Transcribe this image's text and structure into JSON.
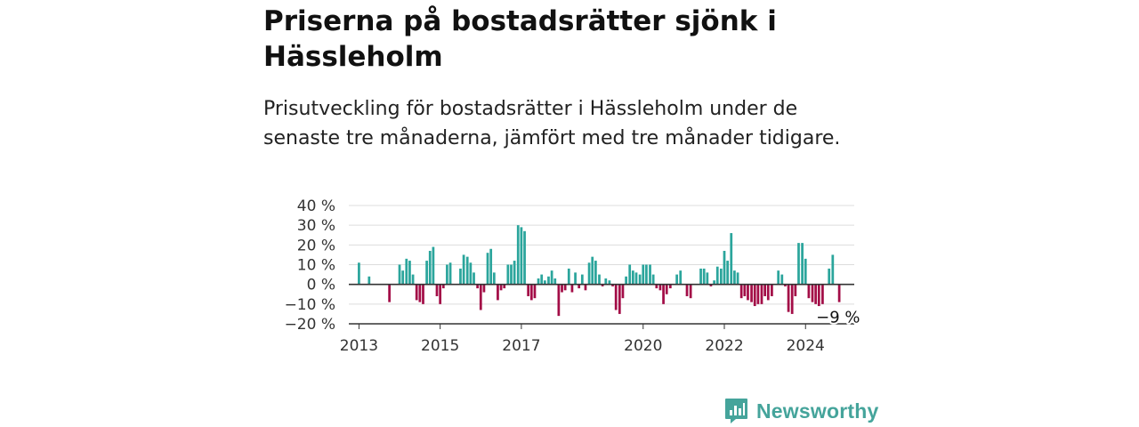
{
  "header": {
    "title": "Priserna på bostadsrätter sjönk i Hässleholm",
    "subtitle": "Prisutveckling för bostadsrätter i Hässleholm under de senaste tre månaderna, jämfört med tre månader tidigare."
  },
  "brand": {
    "name": "Newsworthy",
    "color": "#45a49b"
  },
  "colors": {
    "positive": "#2ba59c",
    "negative": "#a30d47",
    "grid": "#dddddd",
    "axis": "#333333"
  },
  "chart_data": {
    "type": "bar",
    "ylim": [
      -20,
      40
    ],
    "yticks": [
      40,
      30,
      20,
      10,
      0,
      -10,
      -20
    ],
    "ytick_labels": [
      "40 %",
      "30 %",
      "20 %",
      "10 %",
      "0 %",
      "−10 %",
      "−20 %"
    ],
    "xlim": [
      2012.75,
      2025.2
    ],
    "xticks": [
      2013,
      2015,
      2017,
      2020,
      2022,
      2024
    ],
    "xtick_labels": [
      "2013",
      "2015",
      "2017",
      "2020",
      "2022",
      "2024"
    ],
    "grid": true,
    "legend": "none",
    "annotation": {
      "text": "−9 %",
      "x": 2024.83,
      "y": -9
    },
    "series": [
      {
        "points": [
          [
            2013.0,
            11
          ],
          [
            2013.25,
            4
          ],
          [
            2013.75,
            -9
          ],
          [
            2014.0,
            10
          ],
          [
            2014.08,
            7
          ],
          [
            2014.17,
            13
          ],
          [
            2014.25,
            12
          ],
          [
            2014.33,
            5
          ],
          [
            2014.42,
            -8
          ],
          [
            2014.5,
            -9
          ],
          [
            2014.58,
            -10
          ],
          [
            2014.67,
            12
          ],
          [
            2014.75,
            17
          ],
          [
            2014.83,
            19
          ],
          [
            2014.92,
            -6
          ],
          [
            2015.0,
            -10
          ],
          [
            2015.08,
            -2
          ],
          [
            2015.17,
            10
          ],
          [
            2015.25,
            11
          ],
          [
            2015.5,
            8
          ],
          [
            2015.58,
            15
          ],
          [
            2015.67,
            14
          ],
          [
            2015.75,
            11
          ],
          [
            2015.83,
            6
          ],
          [
            2015.92,
            -2
          ],
          [
            2016.0,
            -13
          ],
          [
            2016.08,
            -4
          ],
          [
            2016.17,
            16
          ],
          [
            2016.25,
            18
          ],
          [
            2016.33,
            6
          ],
          [
            2016.42,
            -8
          ],
          [
            2016.5,
            -3
          ],
          [
            2016.58,
            -2
          ],
          [
            2016.67,
            10
          ],
          [
            2016.75,
            10
          ],
          [
            2016.83,
            12
          ],
          [
            2016.92,
            30
          ],
          [
            2017.0,
            29
          ],
          [
            2017.08,
            27
          ],
          [
            2017.17,
            -6
          ],
          [
            2017.25,
            -8
          ],
          [
            2017.33,
            -7
          ],
          [
            2017.42,
            3
          ],
          [
            2017.5,
            5
          ],
          [
            2017.58,
            2
          ],
          [
            2017.67,
            4
          ],
          [
            2017.75,
            7
          ],
          [
            2017.83,
            3
          ],
          [
            2017.92,
            -16
          ],
          [
            2018.0,
            -4
          ],
          [
            2018.08,
            -3
          ],
          [
            2018.17,
            8
          ],
          [
            2018.25,
            -4
          ],
          [
            2018.33,
            6
          ],
          [
            2018.42,
            -2
          ],
          [
            2018.5,
            5
          ],
          [
            2018.58,
            -3
          ],
          [
            2018.67,
            11
          ],
          [
            2018.75,
            14
          ],
          [
            2018.83,
            12
          ],
          [
            2018.92,
            5
          ],
          [
            2019.0,
            -1
          ],
          [
            2019.08,
            3
          ],
          [
            2019.17,
            2
          ],
          [
            2019.25,
            -1
          ],
          [
            2019.33,
            -13
          ],
          [
            2019.42,
            -15
          ],
          [
            2019.5,
            -7
          ],
          [
            2019.58,
            4
          ],
          [
            2019.67,
            10
          ],
          [
            2019.75,
            7
          ],
          [
            2019.83,
            6
          ],
          [
            2019.92,
            5
          ],
          [
            2020.0,
            10
          ],
          [
            2020.08,
            10
          ],
          [
            2020.17,
            10
          ],
          [
            2020.25,
            5
          ],
          [
            2020.33,
            -2
          ],
          [
            2020.42,
            -3
          ],
          [
            2020.5,
            -10
          ],
          [
            2020.58,
            -5
          ],
          [
            2020.67,
            -2
          ],
          [
            2020.83,
            5
          ],
          [
            2020.92,
            7
          ],
          [
            2021.08,
            -6
          ],
          [
            2021.17,
            -7
          ],
          [
            2021.42,
            8
          ],
          [
            2021.5,
            8
          ],
          [
            2021.58,
            6
          ],
          [
            2021.67,
            -1
          ],
          [
            2021.75,
            2
          ],
          [
            2021.83,
            9
          ],
          [
            2021.92,
            8
          ],
          [
            2022.0,
            17
          ],
          [
            2022.08,
            12
          ],
          [
            2022.17,
            26
          ],
          [
            2022.25,
            7
          ],
          [
            2022.33,
            6
          ],
          [
            2022.42,
            -7
          ],
          [
            2022.5,
            -6
          ],
          [
            2022.58,
            -8
          ],
          [
            2022.67,
            -9
          ],
          [
            2022.75,
            -11
          ],
          [
            2022.83,
            -10
          ],
          [
            2022.92,
            -10
          ],
          [
            2023.0,
            -6
          ],
          [
            2023.08,
            -8
          ],
          [
            2023.17,
            -6
          ],
          [
            2023.33,
            7
          ],
          [
            2023.42,
            5
          ],
          [
            2023.5,
            -1
          ],
          [
            2023.58,
            -14
          ],
          [
            2023.67,
            -15
          ],
          [
            2023.75,
            -6
          ],
          [
            2023.83,
            21
          ],
          [
            2023.92,
            21
          ],
          [
            2024.0,
            13
          ],
          [
            2024.08,
            -7
          ],
          [
            2024.17,
            -9
          ],
          [
            2024.25,
            -10
          ],
          [
            2024.33,
            -11
          ],
          [
            2024.42,
            -10
          ],
          [
            2024.58,
            8
          ],
          [
            2024.67,
            15
          ],
          [
            2024.83,
            -9
          ]
        ]
      }
    ]
  }
}
